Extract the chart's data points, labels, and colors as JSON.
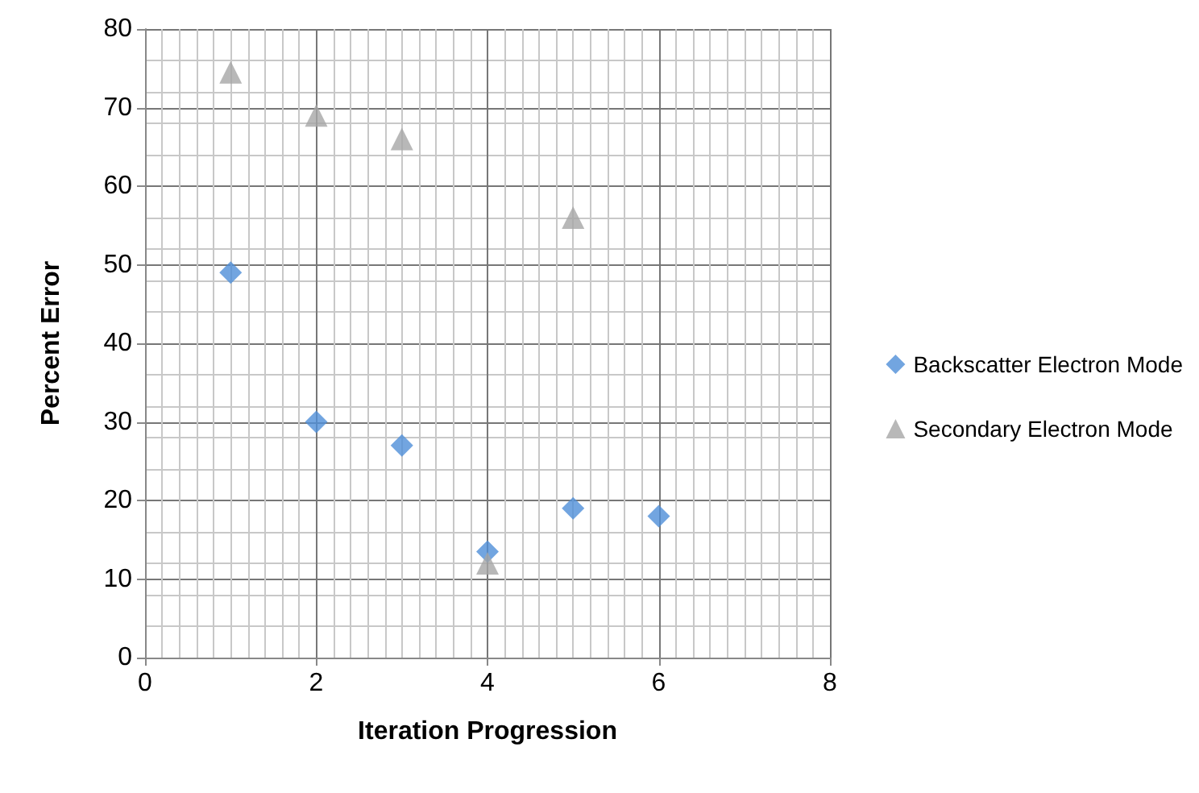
{
  "chart_data": {
    "type": "scatter",
    "xlabel": "Iteration Progression",
    "ylabel": "Percent Error",
    "xlim": [
      0,
      8
    ],
    "xticks": [
      0,
      2,
      4,
      6,
      8
    ],
    "ylim": [
      0,
      80
    ],
    "yticks": [
      0,
      10,
      20,
      30,
      40,
      50,
      60,
      70,
      80
    ],
    "grid": true,
    "legend": "right",
    "series": [
      {
        "name": "Backscatter Electron Mode",
        "color": "#4f8fd8",
        "marker": "diamond",
        "x": [
          1,
          2,
          3,
          4,
          5,
          6
        ],
        "values": [
          49,
          30,
          27,
          13.5,
          19,
          18
        ]
      },
      {
        "name": "Secondary Electron Mode",
        "color": "#a6a6a6",
        "marker": "triangle",
        "x": [
          1,
          2,
          3,
          4,
          5
        ],
        "values": [
          74.5,
          69,
          66,
          12,
          56
        ]
      }
    ]
  }
}
